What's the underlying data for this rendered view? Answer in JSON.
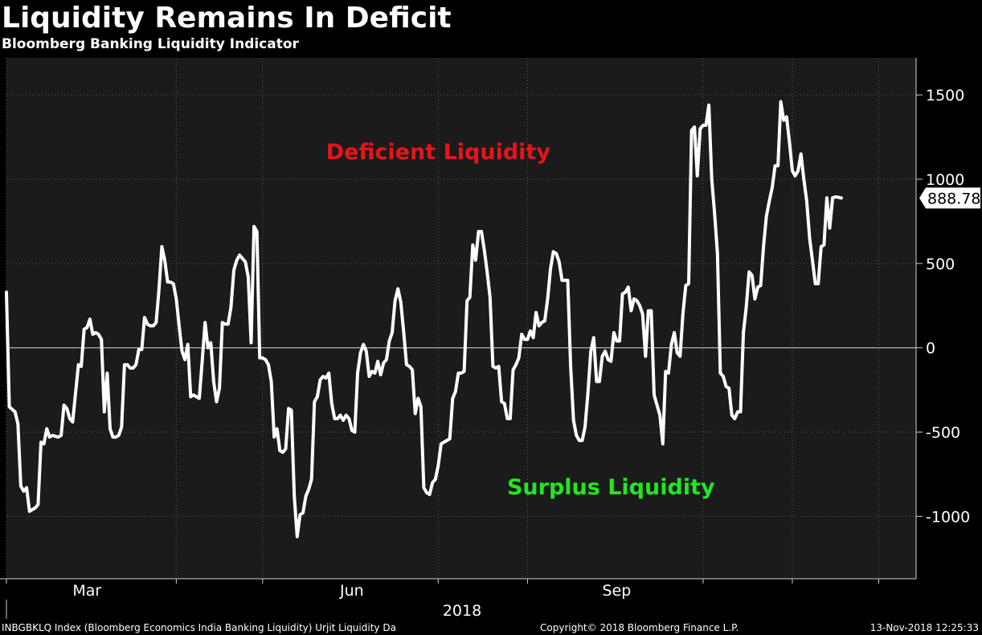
{
  "header": {
    "title": "Liquidity Remains In Deficit",
    "subtitle": "Bloomberg Banking Liquidity Indicator"
  },
  "footer": {
    "source": "INBGBKLQ Index (Bloomberg Economics India Banking Liquidity) Urjit Liquidity  Da",
    "copyright": "Copyright© 2018 Bloomberg Finance L.P.",
    "timestamp": "13-Nov-2018 12:25:33"
  },
  "colors": {
    "background": "#000000",
    "plot_background": "#1b1b1b",
    "line": "#ffffff",
    "deficient": "#e8141b",
    "surplus": "#22e622"
  },
  "chart_data": {
    "type": "line",
    "title": "Liquidity Remains In Deficit",
    "subtitle": "Bloomberg Banking Liquidity Indicator",
    "xlabel": "2018",
    "ylabel": "",
    "x_range": [
      0,
      316
    ],
    "ylim": [
      -1370,
      1720
    ],
    "y_ticks": [
      1500,
      1000,
      500,
      0,
      -500,
      -1000
    ],
    "x_ticks": [
      {
        "x": 28,
        "label": "Mar"
      },
      {
        "x": 120,
        "label": "Jun"
      },
      {
        "x": 212,
        "label": "Sep"
      }
    ],
    "x_minor_ticks": [
      0,
      59,
      89,
      150,
      181,
      242,
      273,
      303
    ],
    "year_label": "2018",
    "gridlines": true,
    "zero_line": true,
    "last_value": 888.78,
    "last_value_label": "888.78",
    "annotations": [
      {
        "text": "Deficient Liquidity",
        "x": 150,
        "y": 1120,
        "color": "#e8141b"
      },
      {
        "text": "Surplus Liquidity",
        "x": 210,
        "y": -870,
        "color": "#22e622"
      }
    ],
    "series": [
      {
        "name": "INBGBKLQ Index",
        "points": [
          [
            0,
            330
          ],
          [
            1,
            -350
          ],
          [
            3,
            -380
          ],
          [
            4,
            -450
          ],
          [
            5,
            -820
          ],
          [
            6,
            -850
          ],
          [
            7,
            -830
          ],
          [
            8,
            -970
          ],
          [
            9,
            -960
          ],
          [
            10,
            -950
          ],
          [
            11,
            -930
          ],
          [
            12,
            -560
          ],
          [
            13,
            -570
          ],
          [
            14,
            -480
          ],
          [
            15,
            -530
          ],
          [
            16,
            -520
          ],
          [
            18,
            -530
          ],
          [
            19,
            -520
          ],
          [
            20,
            -340
          ],
          [
            21,
            -360
          ],
          [
            22,
            -420
          ],
          [
            23,
            -440
          ],
          [
            25,
            -100
          ],
          [
            26,
            -110
          ],
          [
            27,
            110
          ],
          [
            28,
            120
          ],
          [
            29,
            170
          ],
          [
            30,
            80
          ],
          [
            31,
            90
          ],
          [
            32,
            80
          ],
          [
            33,
            50
          ],
          [
            34,
            -380
          ],
          [
            35,
            -150
          ],
          [
            36,
            -480
          ],
          [
            37,
            -530
          ],
          [
            38,
            -530
          ],
          [
            39,
            -520
          ],
          [
            40,
            -470
          ],
          [
            41,
            -100
          ],
          [
            42,
            -100
          ],
          [
            43,
            -120
          ],
          [
            44,
            -120
          ],
          [
            45,
            -100
          ],
          [
            46,
            -10
          ],
          [
            47,
            -10
          ],
          [
            48,
            180
          ],
          [
            49,
            140
          ],
          [
            50,
            130
          ],
          [
            51,
            130
          ],
          [
            52,
            150
          ],
          [
            53,
            350
          ],
          [
            54,
            600
          ],
          [
            55,
            520
          ],
          [
            56,
            390
          ],
          [
            57,
            390
          ],
          [
            58,
            380
          ],
          [
            59,
            290
          ],
          [
            60,
            130
          ],
          [
            61,
            -20
          ],
          [
            62,
            -70
          ],
          [
            63,
            20
          ],
          [
            64,
            -290
          ],
          [
            65,
            -280
          ],
          [
            66,
            -290
          ],
          [
            67,
            -300
          ],
          [
            68,
            -80
          ],
          [
            69,
            150
          ],
          [
            70,
            0
          ],
          [
            71,
            30
          ],
          [
            72,
            -200
          ],
          [
            73,
            -320
          ],
          [
            74,
            -240
          ],
          [
            75,
            150
          ],
          [
            76,
            140
          ],
          [
            77,
            140
          ],
          [
            78,
            240
          ],
          [
            79,
            460
          ],
          [
            80,
            520
          ],
          [
            81,
            550
          ],
          [
            82,
            530
          ],
          [
            83,
            510
          ],
          [
            84,
            420
          ],
          [
            85,
            30
          ],
          [
            86,
            720
          ],
          [
            87,
            690
          ],
          [
            88,
            -60
          ],
          [
            89,
            -60
          ],
          [
            90,
            -70
          ],
          [
            91,
            -100
          ],
          [
            92,
            -200
          ],
          [
            93,
            -530
          ],
          [
            94,
            -480
          ],
          [
            95,
            -610
          ],
          [
            96,
            -620
          ],
          [
            97,
            -600
          ],
          [
            98,
            -360
          ],
          [
            99,
            -370
          ],
          [
            100,
            -880
          ],
          [
            101,
            -1120
          ],
          [
            102,
            -990
          ],
          [
            103,
            -980
          ],
          [
            104,
            -880
          ],
          [
            105,
            -840
          ],
          [
            106,
            -780
          ],
          [
            107,
            -320
          ],
          [
            108,
            -290
          ],
          [
            109,
            -190
          ],
          [
            110,
            -170
          ],
          [
            111,
            -180
          ],
          [
            112,
            -150
          ],
          [
            113,
            -330
          ],
          [
            114,
            -420
          ],
          [
            115,
            -420
          ],
          [
            116,
            -400
          ],
          [
            117,
            -430
          ],
          [
            118,
            -400
          ],
          [
            119,
            -420
          ],
          [
            120,
            -490
          ],
          [
            121,
            -500
          ],
          [
            122,
            -150
          ],
          [
            123,
            -30
          ],
          [
            124,
            20
          ],
          [
            125,
            -20
          ],
          [
            126,
            -170
          ],
          [
            127,
            -140
          ],
          [
            128,
            -150
          ],
          [
            129,
            -80
          ],
          [
            130,
            -160
          ],
          [
            131,
            -90
          ],
          [
            132,
            -70
          ],
          [
            133,
            40
          ],
          [
            134,
            90
          ],
          [
            135,
            280
          ],
          [
            136,
            350
          ],
          [
            137,
            270
          ],
          [
            138,
            90
          ],
          [
            139,
            -100
          ],
          [
            140,
            -110
          ],
          [
            141,
            -130
          ],
          [
            142,
            -390
          ],
          [
            143,
            -300
          ],
          [
            144,
            -350
          ],
          [
            145,
            -830
          ],
          [
            146,
            -860
          ],
          [
            147,
            -870
          ],
          [
            148,
            -800
          ],
          [
            149,
            -780
          ],
          [
            150,
            -700
          ],
          [
            151,
            -570
          ],
          [
            152,
            -560
          ],
          [
            153,
            -550
          ],
          [
            154,
            -540
          ],
          [
            155,
            -300
          ],
          [
            156,
            -260
          ],
          [
            157,
            -150
          ],
          [
            158,
            -150
          ],
          [
            159,
            -140
          ],
          [
            160,
            280
          ],
          [
            161,
            300
          ],
          [
            162,
            610
          ],
          [
            163,
            520
          ],
          [
            164,
            690
          ],
          [
            165,
            690
          ],
          [
            166,
            580
          ],
          [
            167,
            450
          ],
          [
            168,
            300
          ],
          [
            169,
            -110
          ],
          [
            170,
            -120
          ],
          [
            171,
            -110
          ],
          [
            172,
            -320
          ],
          [
            173,
            -330
          ],
          [
            174,
            -420
          ],
          [
            175,
            -420
          ],
          [
            176,
            -130
          ],
          [
            177,
            -100
          ],
          [
            178,
            -60
          ],
          [
            179,
            80
          ],
          [
            180,
            50
          ],
          [
            181,
            50
          ],
          [
            182,
            100
          ],
          [
            183,
            60
          ],
          [
            184,
            210
          ],
          [
            185,
            130
          ],
          [
            186,
            150
          ],
          [
            187,
            160
          ],
          [
            188,
            290
          ],
          [
            189,
            470
          ],
          [
            190,
            570
          ],
          [
            191,
            560
          ],
          [
            192,
            510
          ],
          [
            193,
            400
          ],
          [
            194,
            400
          ],
          [
            195,
            400
          ],
          [
            196,
            -110
          ],
          [
            197,
            -430
          ],
          [
            198,
            -520
          ],
          [
            199,
            -550
          ],
          [
            200,
            -550
          ],
          [
            201,
            -470
          ],
          [
            202,
            -270
          ],
          [
            203,
            -20
          ],
          [
            204,
            60
          ],
          [
            205,
            -200
          ],
          [
            206,
            -200
          ],
          [
            207,
            -50
          ],
          [
            208,
            -20
          ],
          [
            209,
            -70
          ],
          [
            210,
            -80
          ],
          [
            211,
            90
          ],
          [
            212,
            40
          ],
          [
            213,
            40
          ],
          [
            214,
            320
          ],
          [
            215,
            330
          ],
          [
            216,
            360
          ],
          [
            217,
            220
          ],
          [
            218,
            290
          ],
          [
            219,
            280
          ],
          [
            220,
            250
          ],
          [
            221,
            200
          ],
          [
            222,
            -50
          ],
          [
            223,
            220
          ],
          [
            224,
            220
          ],
          [
            225,
            -280
          ],
          [
            226,
            -340
          ],
          [
            227,
            -400
          ],
          [
            228,
            -570
          ],
          [
            229,
            -140
          ],
          [
            230,
            -150
          ],
          [
            231,
            20
          ],
          [
            232,
            90
          ],
          [
            233,
            -30
          ],
          [
            234,
            -50
          ],
          [
            235,
            200
          ],
          [
            236,
            370
          ],
          [
            237,
            380
          ],
          [
            238,
            1290
          ],
          [
            239,
            1310
          ],
          [
            240,
            1020
          ],
          [
            241,
            1300
          ],
          [
            242,
            1320
          ],
          [
            243,
            1320
          ],
          [
            244,
            1440
          ],
          [
            245,
            1000
          ],
          [
            246,
            800
          ],
          [
            247,
            560
          ],
          [
            248,
            -150
          ],
          [
            249,
            -170
          ],
          [
            250,
            -230
          ],
          [
            251,
            -240
          ],
          [
            252,
            -400
          ],
          [
            253,
            -420
          ],
          [
            254,
            -380
          ],
          [
            255,
            -380
          ],
          [
            256,
            90
          ],
          [
            257,
            240
          ],
          [
            258,
            450
          ],
          [
            259,
            430
          ],
          [
            260,
            290
          ],
          [
            261,
            360
          ],
          [
            262,
            370
          ],
          [
            263,
            600
          ],
          [
            264,
            780
          ],
          [
            265,
            870
          ],
          [
            266,
            950
          ],
          [
            267,
            1080
          ],
          [
            268,
            1080
          ],
          [
            269,
            1460
          ],
          [
            270,
            1350
          ],
          [
            271,
            1370
          ],
          [
            272,
            1220
          ],
          [
            273,
            1050
          ],
          [
            274,
            1020
          ],
          [
            275,
            1050
          ],
          [
            276,
            1150
          ],
          [
            277,
            1000
          ],
          [
            278,
            870
          ],
          [
            279,
            650
          ],
          [
            280,
            520
          ],
          [
            281,
            380
          ],
          [
            282,
            380
          ],
          [
            283,
            600
          ],
          [
            284,
            610
          ],
          [
            285,
            890
          ],
          [
            286,
            710
          ],
          [
            287,
            890
          ],
          [
            288,
            895
          ],
          [
            289,
            893
          ],
          [
            290,
            888.78
          ]
        ]
      }
    ]
  }
}
